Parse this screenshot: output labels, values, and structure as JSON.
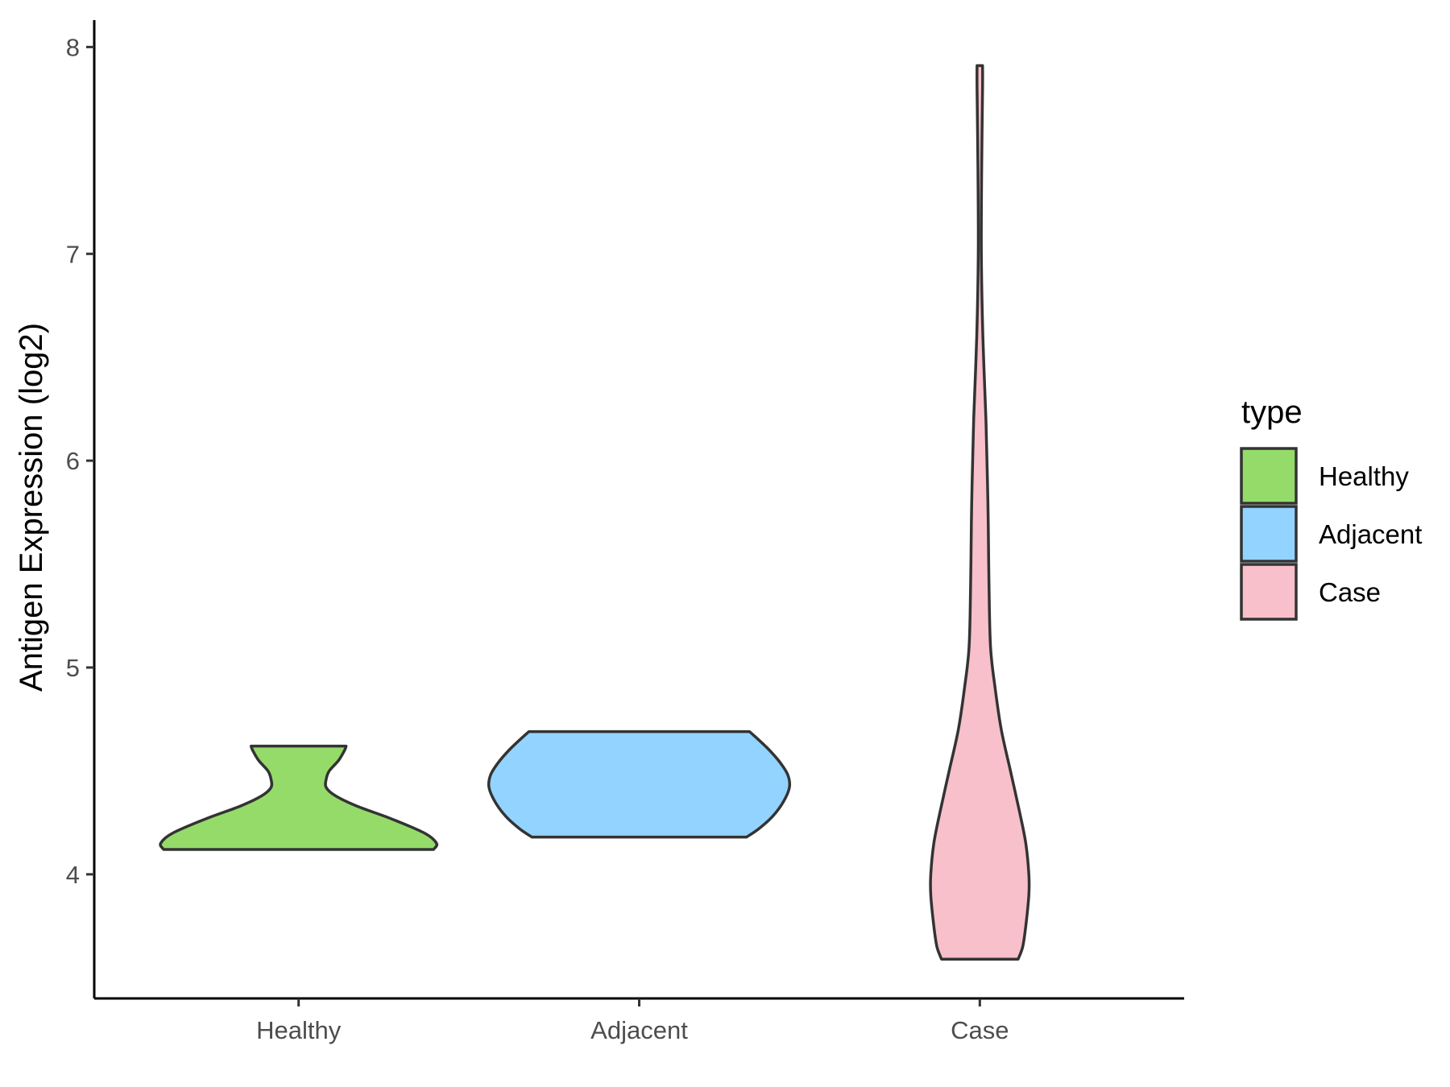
{
  "chart_data": {
    "type": "violin",
    "title": "",
    "xlabel": "",
    "ylabel": "Antigen Expression (log2)",
    "ylim": [
      3.4,
      8.13
    ],
    "yticks": [
      4,
      5,
      6,
      7,
      8
    ],
    "grid": false,
    "categories": [
      "Healthy",
      "Adjacent",
      "Case"
    ],
    "series": [
      {
        "name": "Healthy",
        "color": "#95DB6A",
        "min": 4.12,
        "max": 4.62,
        "profile": [
          [
            4.12,
            0.88
          ],
          [
            4.15,
            0.9
          ],
          [
            4.2,
            0.82
          ],
          [
            4.27,
            0.6
          ],
          [
            4.33,
            0.38
          ],
          [
            4.38,
            0.24
          ],
          [
            4.42,
            0.18
          ],
          [
            4.46,
            0.18
          ],
          [
            4.5,
            0.2
          ],
          [
            4.55,
            0.26
          ],
          [
            4.6,
            0.3
          ],
          [
            4.62,
            0.31
          ]
        ]
      },
      {
        "name": "Adjacent",
        "color": "#92D3FF",
        "min": 4.18,
        "max": 4.69,
        "profile": [
          [
            4.18,
            0.7
          ],
          [
            4.22,
            0.78
          ],
          [
            4.28,
            0.87
          ],
          [
            4.35,
            0.94
          ],
          [
            4.42,
            0.98
          ],
          [
            4.48,
            0.97
          ],
          [
            4.54,
            0.92
          ],
          [
            4.6,
            0.85
          ],
          [
            4.65,
            0.78
          ],
          [
            4.69,
            0.72
          ]
        ]
      },
      {
        "name": "Case",
        "color": "#F7C0CB",
        "min": 3.59,
        "max": 7.91,
        "profile": [
          [
            3.59,
            0.25
          ],
          [
            3.65,
            0.28
          ],
          [
            3.75,
            0.3
          ],
          [
            3.9,
            0.32
          ],
          [
            4.0,
            0.32
          ],
          [
            4.15,
            0.3
          ],
          [
            4.3,
            0.26
          ],
          [
            4.5,
            0.2
          ],
          [
            4.7,
            0.14
          ],
          [
            4.9,
            0.1
          ],
          [
            5.1,
            0.07
          ],
          [
            5.4,
            0.06
          ],
          [
            5.7,
            0.055
          ],
          [
            5.9,
            0.05
          ],
          [
            6.2,
            0.04
          ],
          [
            6.6,
            0.02
          ],
          [
            7.0,
            0.01
          ],
          [
            7.4,
            0.012
          ],
          [
            7.8,
            0.018
          ],
          [
            7.91,
            0.018
          ]
        ]
      }
    ],
    "legend": {
      "title": "type",
      "position": "right",
      "entries": [
        {
          "label": "Healthy",
          "color": "#95DB6A"
        },
        {
          "label": "Adjacent",
          "color": "#92D3FF"
        },
        {
          "label": "Case",
          "color": "#F7C0CB"
        }
      ]
    }
  }
}
